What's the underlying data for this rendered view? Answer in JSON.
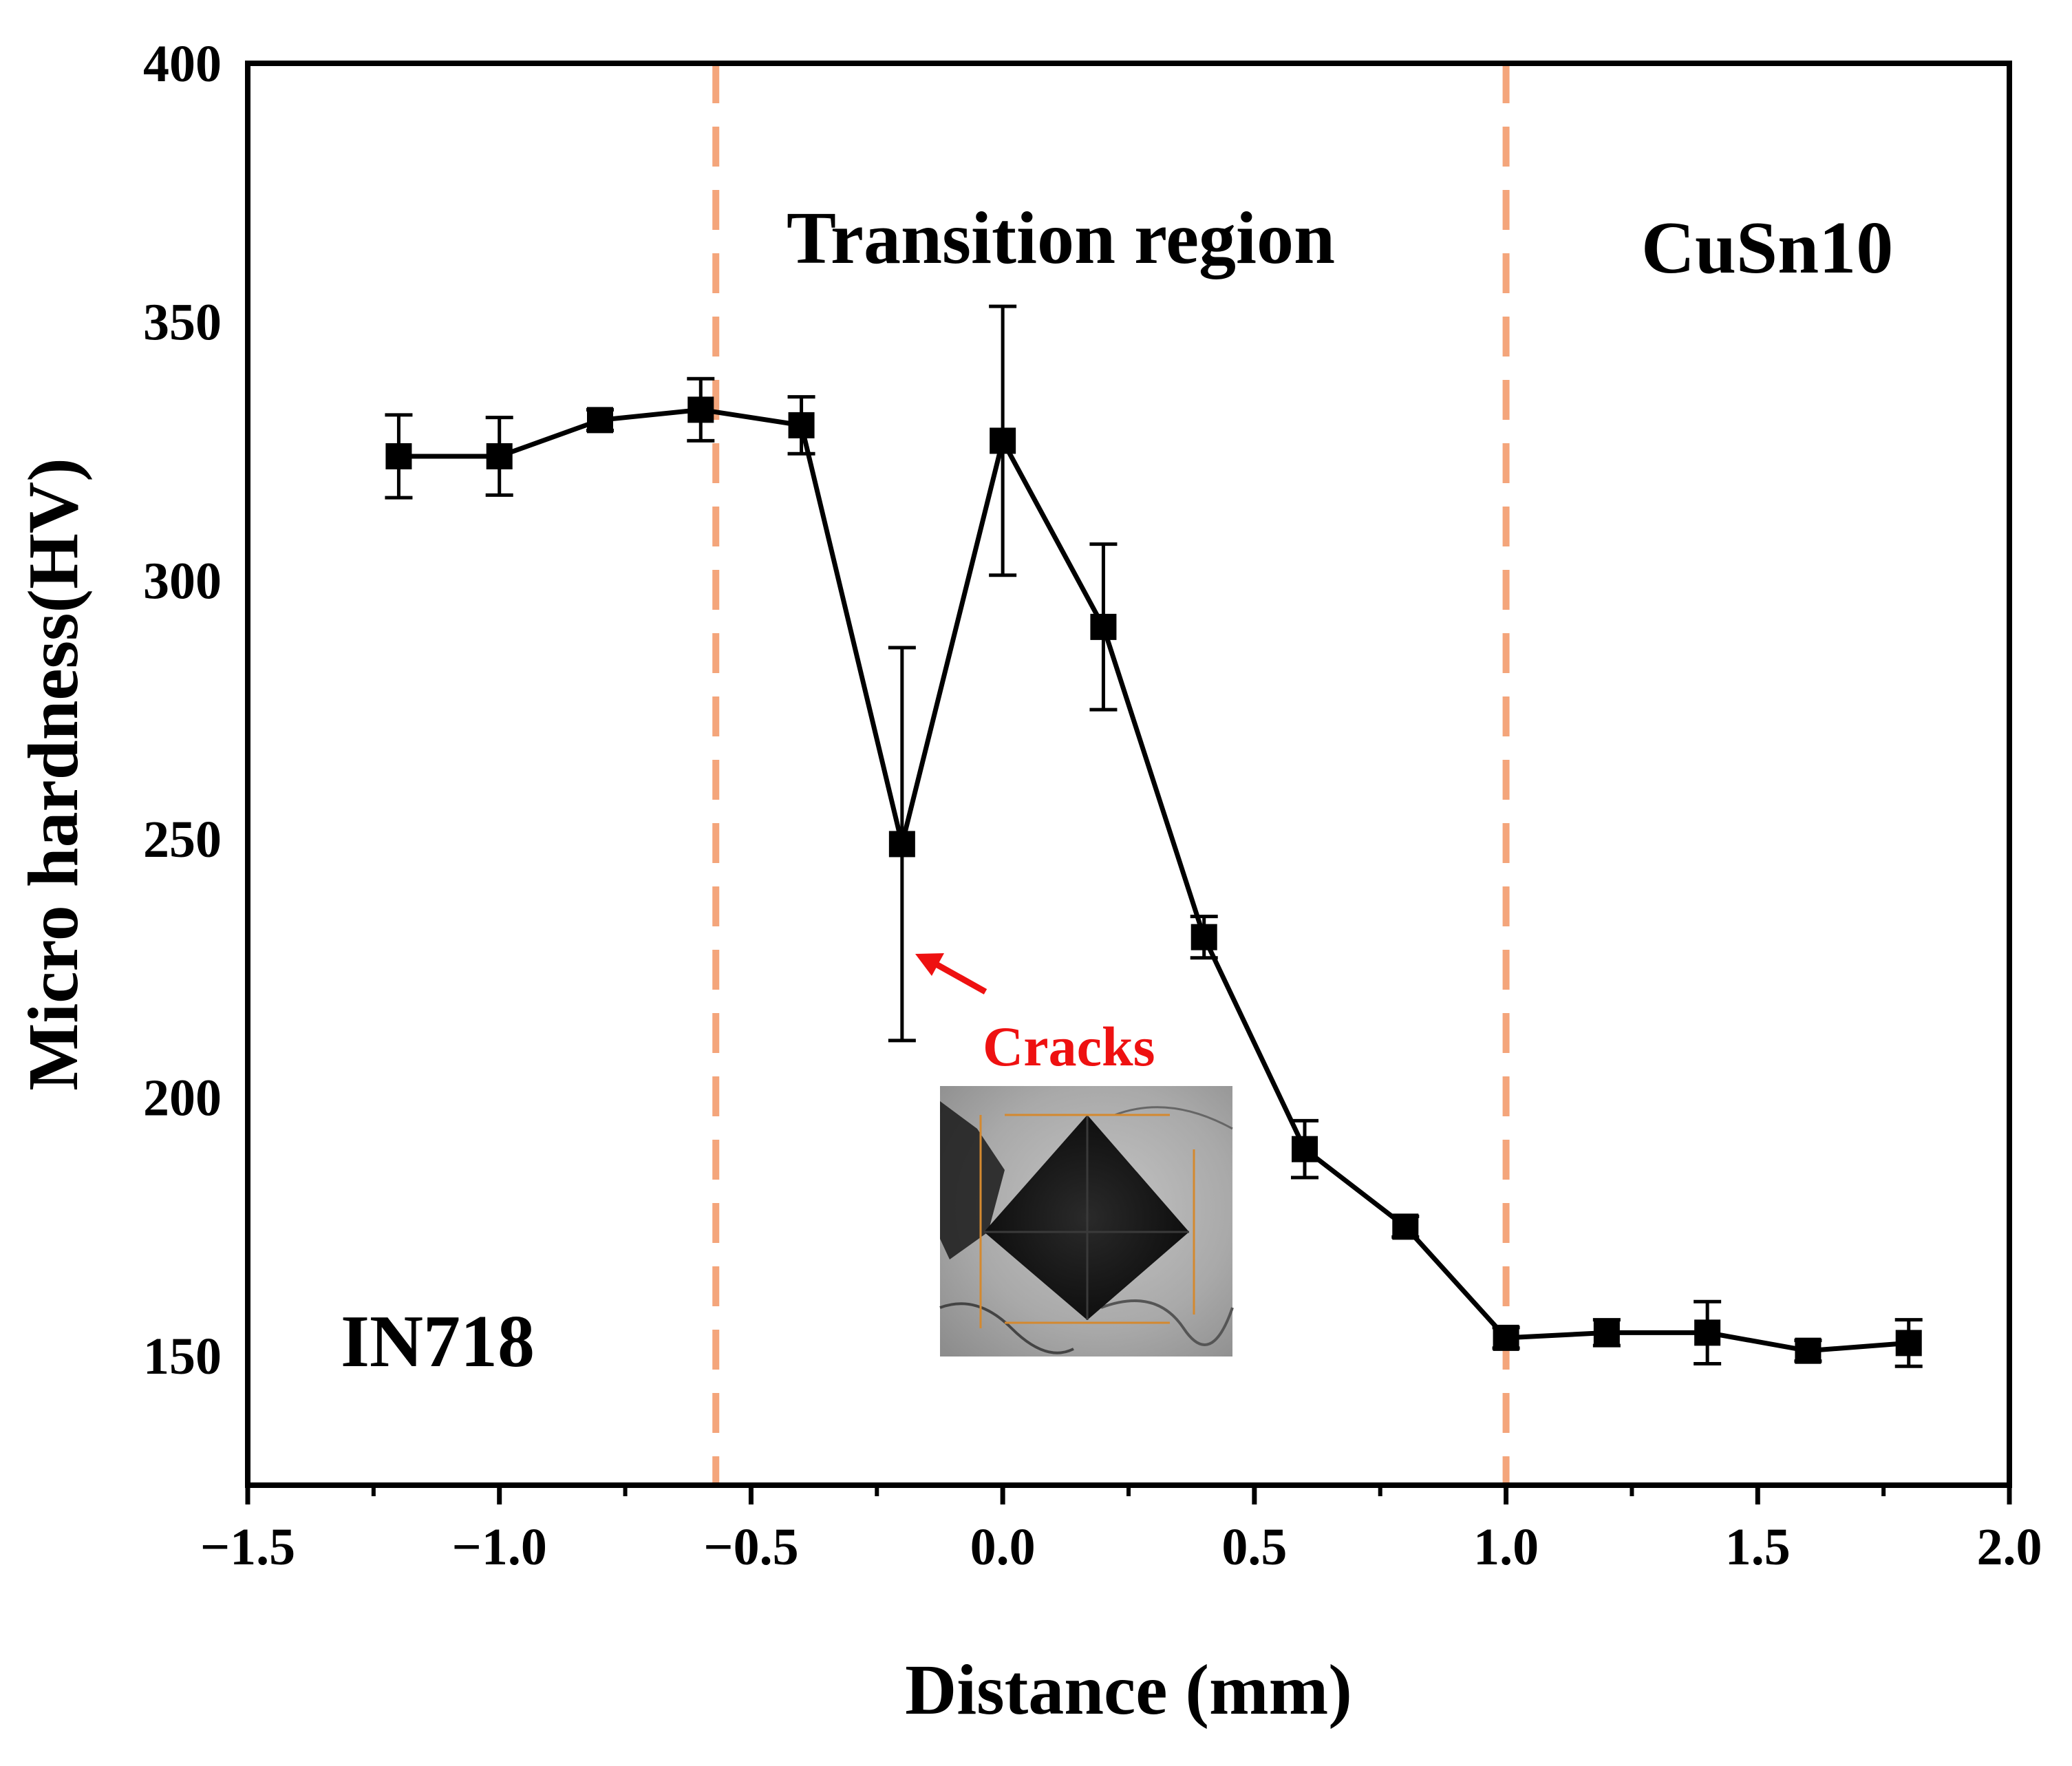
{
  "chart_data": {
    "type": "line",
    "xlabel": "Distance (mm)",
    "ylabel": "Micro hardness(HV)",
    "xlim": [
      -1.5,
      2.0
    ],
    "ylim": [
      125,
      400
    ],
    "xticks": [
      -1.5,
      -1.0,
      -0.5,
      0.0,
      0.5,
      1.0,
      1.5,
      2.0
    ],
    "xtick_labels": [
      "−1.5",
      "−1.0",
      "−0.5",
      "0.0",
      "0.5",
      "1.0",
      "1.5",
      "2.0"
    ],
    "yticks": [
      150,
      200,
      250,
      300,
      350,
      400
    ],
    "ytick_labels": [
      "150",
      "200",
      "250",
      "300",
      "350",
      "400"
    ],
    "grid": false,
    "series": [
      {
        "name": "Micro hardness",
        "marker": "square",
        "color": "#000000",
        "points": [
          {
            "x": -1.2,
            "y": 324,
            "err": 8
          },
          {
            "x": -1.0,
            "y": 324,
            "err": 7.5
          },
          {
            "x": -0.8,
            "y": 331,
            "err": 2
          },
          {
            "x": -0.6,
            "y": 333,
            "err": 6
          },
          {
            "x": -0.4,
            "y": 330,
            "err": 5.5
          },
          {
            "x": -0.2,
            "y": 249,
            "err": 38
          },
          {
            "x": 0.0,
            "y": 327,
            "err": 26
          },
          {
            "x": 0.2,
            "y": 291,
            "err": 16
          },
          {
            "x": 0.4,
            "y": 231,
            "err": 4
          },
          {
            "x": 0.6,
            "y": 190,
            "err": 5.5
          },
          {
            "x": 0.8,
            "y": 175,
            "err": 2
          },
          {
            "x": 1.0,
            "y": 153.5,
            "err": 2
          },
          {
            "x": 1.2,
            "y": 154.5,
            "err": 2.5
          },
          {
            "x": 1.4,
            "y": 154.5,
            "err": 6
          },
          {
            "x": 1.6,
            "y": 151,
            "err": 2
          },
          {
            "x": 1.8,
            "y": 152.5,
            "err": 4.5
          }
        ]
      }
    ],
    "boundaries": {
      "color": "#f4a57b",
      "values": [
        -0.57,
        1.0
      ]
    },
    "regions": {
      "left": "IN718",
      "middle": "Transition region",
      "right": "CuSn10"
    },
    "annotation": {
      "text": "Cracks",
      "color": "#ee1111",
      "target_x": -0.2,
      "target_y": 228
    },
    "inset": {
      "name": "microhardness indentation micrograph"
    }
  }
}
